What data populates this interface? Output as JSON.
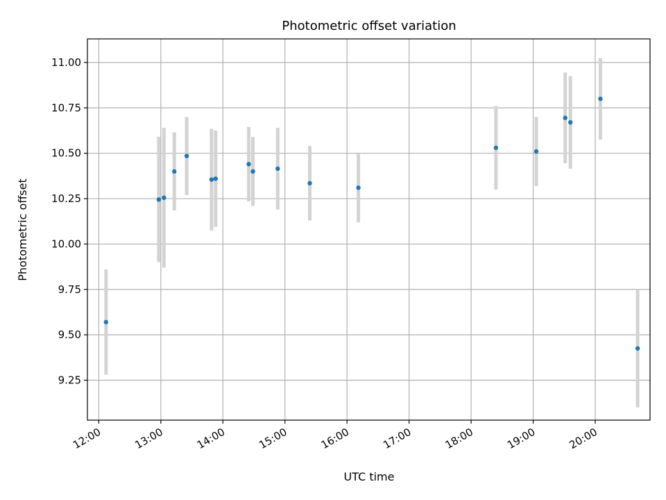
{
  "chart_data": {
    "type": "scatter",
    "title": "Photometric offset variation",
    "xlabel": "UTC time",
    "ylabel": "Photometric offset",
    "x_tick_labels": [
      "12:00",
      "13:00",
      "14:00",
      "15:00",
      "16:00",
      "17:00",
      "18:00",
      "19:00",
      "20:00"
    ],
    "x_tick_hours": [
      12,
      13,
      14,
      15,
      16,
      17,
      18,
      19,
      20
    ],
    "y_tick_labels": [
      "9.25",
      "9.50",
      "9.75",
      "10.00",
      "10.25",
      "10.50",
      "10.75",
      "11.00"
    ],
    "y_tick_values": [
      9.25,
      9.5,
      9.75,
      10.0,
      10.25,
      10.5,
      10.75,
      11.0
    ],
    "xlim": [
      "11:49",
      "20:53"
    ],
    "ylim": [
      9.03,
      11.13
    ],
    "grid": true,
    "colors": {
      "point": "#1f77b4",
      "errorbar": "#d3d3d3",
      "grid": "#b0b0b0"
    },
    "points": [
      {
        "time": "12:07",
        "y": 9.57,
        "err": 0.29
      },
      {
        "time": "12:58",
        "y": 10.245,
        "err": 0.345
      },
      {
        "time": "13:03",
        "y": 10.255,
        "err": 0.385
      },
      {
        "time": "13:13",
        "y": 10.4,
        "err": 0.215
      },
      {
        "time": "13:25",
        "y": 10.485,
        "err": 0.215
      },
      {
        "time": "13:49",
        "y": 10.355,
        "err": 0.28
      },
      {
        "time": "13:53",
        "y": 10.36,
        "err": 0.265
      },
      {
        "time": "14:25",
        "y": 10.44,
        "err": 0.205
      },
      {
        "time": "14:29",
        "y": 10.4,
        "err": 0.19
      },
      {
        "time": "14:53",
        "y": 10.415,
        "err": 0.225
      },
      {
        "time": "15:24",
        "y": 10.335,
        "err": 0.205
      },
      {
        "time": "16:11",
        "y": 10.31,
        "err": 0.19
      },
      {
        "time": "18:24",
        "y": 10.53,
        "err": 0.23
      },
      {
        "time": "19:03",
        "y": 10.51,
        "err": 0.19
      },
      {
        "time": "19:31",
        "y": 10.695,
        "err": 0.25
      },
      {
        "time": "19:36",
        "y": 10.67,
        "err": 0.255
      },
      {
        "time": "20:05",
        "y": 10.8,
        "err": 0.225
      },
      {
        "time": "20:41",
        "y": 9.425,
        "err": 0.325
      }
    ]
  }
}
